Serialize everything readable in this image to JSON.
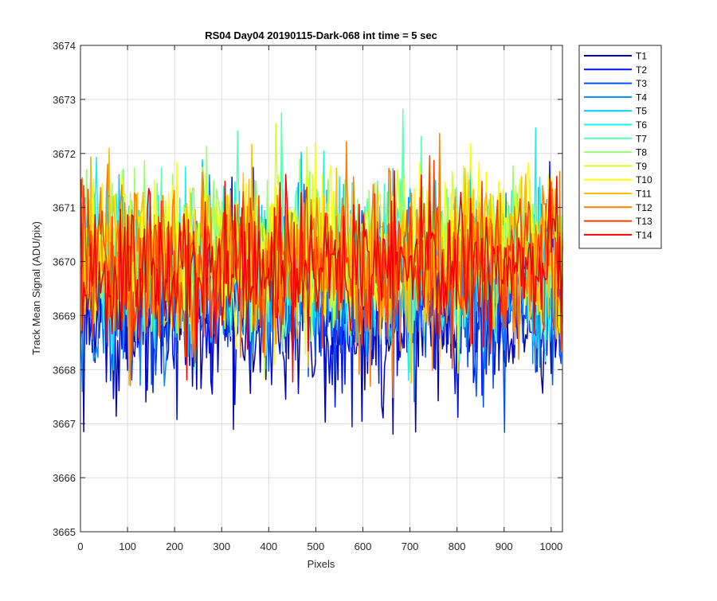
{
  "chart_data": {
    "type": "line",
    "title": "RS04 Day04 20190115-Dark-068 int time = 5 sec",
    "xlabel": "Pixels",
    "ylabel": "Track Mean Signal (ADU/pix)",
    "xlim": [
      0,
      1024
    ],
    "ylim": [
      3665,
      3674
    ],
    "x_ticks": [
      "0",
      "100",
      "200",
      "300",
      "400",
      "500",
      "600",
      "700",
      "800",
      "900",
      "1000"
    ],
    "y_ticks": [
      "3665",
      "3666",
      "3667",
      "3668",
      "3669",
      "3670",
      "3671",
      "3672",
      "3673",
      "3674"
    ],
    "grid": true,
    "legend_position": "outside-right",
    "x_sampling": {
      "start": 1,
      "end": 1024,
      "step": 3
    },
    "series": [
      {
        "name": "T1",
        "color": "#0000b4",
        "mean": 3669.0,
        "noise_sd": 0.85
      },
      {
        "name": "T2",
        "color": "#0014e6",
        "mean": 3669.2,
        "noise_sd": 0.8
      },
      {
        "name": "T3",
        "color": "#0050ff",
        "mean": 3669.4,
        "noise_sd": 0.75
      },
      {
        "name": "T4",
        "color": "#008cff",
        "mean": 3669.6,
        "noise_sd": 0.75
      },
      {
        "name": "T5",
        "color": "#00c8ff",
        "mean": 3669.8,
        "noise_sd": 0.75
      },
      {
        "name": "T6",
        "color": "#1ef0f0",
        "mean": 3670.0,
        "noise_sd": 0.75
      },
      {
        "name": "T7",
        "color": "#5affb4",
        "mean": 3670.1,
        "noise_sd": 0.75
      },
      {
        "name": "T8",
        "color": "#96ff6e",
        "mean": 3670.2,
        "noise_sd": 0.75
      },
      {
        "name": "T9",
        "color": "#d2ff2d",
        "mean": 3670.2,
        "noise_sd": 0.75
      },
      {
        "name": "T10",
        "color": "#ffff00",
        "mean": 3670.2,
        "noise_sd": 0.75
      },
      {
        "name": "T11",
        "color": "#ffbe00",
        "mean": 3670.1,
        "noise_sd": 0.75
      },
      {
        "name": "T12",
        "color": "#ff7d00",
        "mean": 3670.0,
        "noise_sd": 0.75
      },
      {
        "name": "T13",
        "color": "#ff3c00",
        "mean": 3669.9,
        "noise_sd": 0.75
      },
      {
        "name": "T14",
        "color": "#f00000",
        "mean": 3669.9,
        "noise_sd": 0.7
      }
    ]
  }
}
